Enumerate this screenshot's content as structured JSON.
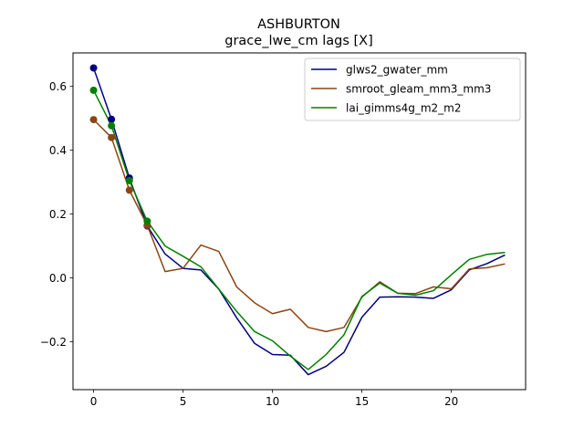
{
  "chart_data": {
    "type": "line",
    "title": "ASHBURTON",
    "subtitle": "grace_lwe_cm lags [X]",
    "xlabel": "",
    "ylabel": "",
    "xlim": [
      -1.15,
      24.15
    ],
    "ylim": [
      -0.35,
      0.705
    ],
    "xticks": [
      0,
      5,
      10,
      15,
      20
    ],
    "yticks": [
      -0.2,
      0.0,
      0.2,
      0.4,
      0.6
    ],
    "ytick_labels": [
      "−0.2",
      "0.0",
      "0.2",
      "0.4",
      "0.6"
    ],
    "legend_position": "top-right",
    "grid": false,
    "x": [
      0,
      1,
      2,
      3,
      4,
      5,
      6,
      7,
      8,
      9,
      10,
      11,
      12,
      13,
      14,
      15,
      16,
      17,
      18,
      19,
      20,
      21,
      22,
      23
    ],
    "series": [
      {
        "name": "glws2_gwater_mm",
        "color": "#00007f",
        "values": [
          0.658,
          0.497,
          0.313,
          0.163,
          0.075,
          0.03,
          0.025,
          -0.035,
          -0.125,
          -0.205,
          -0.24,
          -0.242,
          -0.303,
          -0.277,
          -0.233,
          -0.123,
          -0.06,
          -0.059,
          -0.06,
          -0.064,
          -0.037,
          0.025,
          0.045,
          0.072
        ],
        "markers_up_to": 3
      },
      {
        "name": "smroot_gleam_mm3_mm3",
        "color": "#8b4513",
        "values": [
          0.496,
          0.44,
          0.275,
          0.165,
          0.02,
          0.03,
          0.103,
          0.083,
          -0.028,
          -0.078,
          -0.112,
          -0.098,
          -0.155,
          -0.168,
          -0.155,
          -0.06,
          -0.012,
          -0.048,
          -0.049,
          -0.028,
          -0.034,
          0.028,
          0.032,
          0.044
        ],
        "markers_up_to": 3
      },
      {
        "name": "lai_gimms4g_m2_m2",
        "color": "#008000",
        "values": [
          0.588,
          0.477,
          0.305,
          0.178,
          0.1,
          0.068,
          0.035,
          -0.035,
          -0.105,
          -0.168,
          -0.197,
          -0.245,
          -0.287,
          -0.24,
          -0.178,
          -0.058,
          -0.016,
          -0.048,
          -0.054,
          -0.04,
          0.01,
          0.058,
          0.074,
          0.08
        ],
        "markers_up_to": 3
      }
    ]
  }
}
